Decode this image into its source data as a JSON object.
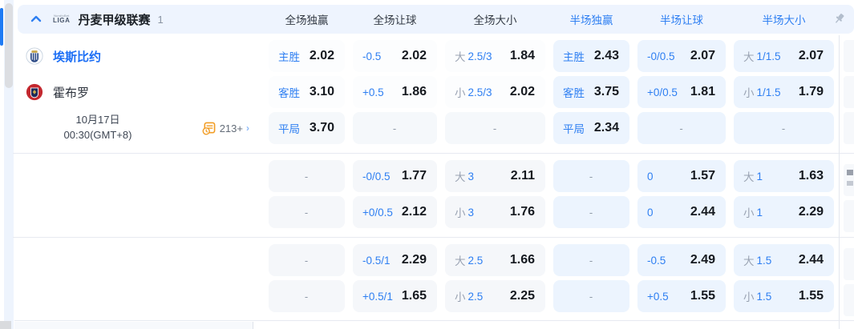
{
  "colors": {
    "accent_blue": "#2e7ff2",
    "odds_text": "#15191f",
    "half_cell_bg": "#ecf4fe",
    "alt_cell_bg": "#f5f7fa",
    "header_bg": "#eef4fe",
    "markets_orange": "#f29d25"
  },
  "icons": {
    "collapse": "chevron-up",
    "pin": "pushpin",
    "markets": "odds-count-clock",
    "more": "chevron-right",
    "home_crest": "esbjerg-crest",
    "away_crest": "hobro-crest"
  },
  "header": {
    "logo": "LIGA",
    "logo_top": "NordicBet",
    "league": "丹麦甲级联赛",
    "count": "1",
    "columns": [
      {
        "label": "全场独赢",
        "tone": "dark"
      },
      {
        "label": "全场让球",
        "tone": "dark"
      },
      {
        "label": "全场大小",
        "tone": "dark"
      },
      {
        "label": "半场独赢",
        "tone": "blue"
      },
      {
        "label": "半场让球",
        "tone": "blue"
      },
      {
        "label": "半场大小",
        "tone": "blue"
      }
    ]
  },
  "match": {
    "home": "埃斯比约",
    "away": "霍布罗",
    "date_line1": "10月17日",
    "date_line2": "00:30(GMT+8)",
    "markets_count": "213+"
  },
  "rows": [
    {
      "cells": [
        {
          "type": "pick",
          "label": "主胜",
          "odds": "2.02"
        },
        {
          "type": "line",
          "line": "-0.5",
          "odds": "2.02"
        },
        {
          "type": "ou",
          "prefix": "大",
          "line": "2.5/3",
          "odds": "1.84"
        },
        {
          "type": "pick",
          "label": "主胜",
          "odds": "2.43"
        },
        {
          "type": "line",
          "line": "-0/0.5",
          "odds": "2.07"
        },
        {
          "type": "ou",
          "prefix": "大",
          "line": "1/1.5",
          "odds": "2.07"
        }
      ]
    },
    {
      "cells": [
        {
          "type": "pick",
          "label": "客胜",
          "odds": "3.10"
        },
        {
          "type": "line",
          "line": "+0.5",
          "odds": "1.86"
        },
        {
          "type": "ou",
          "prefix": "小",
          "line": "2.5/3",
          "odds": "2.02"
        },
        {
          "type": "pick",
          "label": "客胜",
          "odds": "3.75"
        },
        {
          "type": "line",
          "line": "+0/0.5",
          "odds": "1.81"
        },
        {
          "type": "ou",
          "prefix": "小",
          "line": "1/1.5",
          "odds": "1.79"
        }
      ]
    },
    {
      "cells": [
        {
          "type": "pick",
          "label": "平局",
          "odds": "3.70"
        },
        {
          "type": "dash"
        },
        {
          "type": "dash"
        },
        {
          "type": "pick",
          "label": "平局",
          "odds": "2.34"
        },
        {
          "type": "dash"
        },
        {
          "type": "dash"
        }
      ]
    },
    {
      "cells": [
        {
          "type": "dash"
        },
        {
          "type": "line",
          "line": "-0/0.5",
          "odds": "1.77"
        },
        {
          "type": "ou",
          "prefix": "大",
          "line": "3",
          "odds": "2.11"
        },
        {
          "type": "dash"
        },
        {
          "type": "line",
          "line": "0",
          "odds": "1.57"
        },
        {
          "type": "ou",
          "prefix": "大",
          "line": "1",
          "odds": "1.63"
        }
      ]
    },
    {
      "cells": [
        {
          "type": "dash"
        },
        {
          "type": "line",
          "line": "+0/0.5",
          "odds": "2.12"
        },
        {
          "type": "ou",
          "prefix": "小",
          "line": "3",
          "odds": "1.76"
        },
        {
          "type": "dash"
        },
        {
          "type": "line",
          "line": "0",
          "odds": "2.44"
        },
        {
          "type": "ou",
          "prefix": "小",
          "line": "1",
          "odds": "2.29"
        }
      ]
    },
    {
      "cells": [
        {
          "type": "dash"
        },
        {
          "type": "line",
          "line": "-0.5/1",
          "odds": "2.29"
        },
        {
          "type": "ou",
          "prefix": "大",
          "line": "2.5",
          "odds": "1.66"
        },
        {
          "type": "dash"
        },
        {
          "type": "line",
          "line": "-0.5",
          "odds": "2.49"
        },
        {
          "type": "ou",
          "prefix": "大",
          "line": "1.5",
          "odds": "2.44"
        }
      ]
    },
    {
      "cells": [
        {
          "type": "dash"
        },
        {
          "type": "line",
          "line": "+0.5/1",
          "odds": "1.65"
        },
        {
          "type": "ou",
          "prefix": "小",
          "line": "2.5",
          "odds": "2.25"
        },
        {
          "type": "dash"
        },
        {
          "type": "line",
          "line": "+0.5",
          "odds": "1.55"
        },
        {
          "type": "ou",
          "prefix": "小",
          "line": "1.5",
          "odds": "1.55"
        }
      ]
    }
  ]
}
